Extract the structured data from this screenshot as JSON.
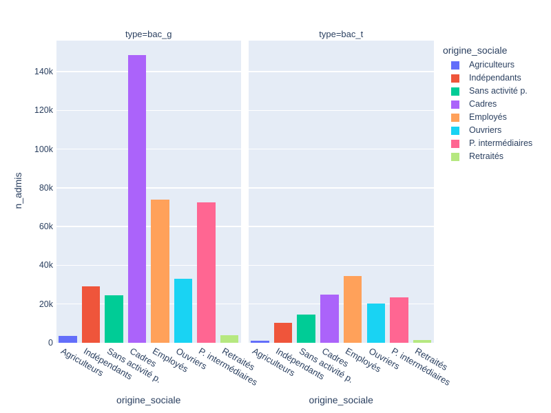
{
  "chart_data": {
    "type": "bar",
    "title": "",
    "xlabel": "origine_sociale",
    "ylabel": "n_admis",
    "ylim": [
      0,
      156000
    ],
    "grid": true,
    "plot_bg": "#e5ecf6",
    "grid_color": "#ffffff",
    "font_color": "#2a3f5f",
    "yticks": [
      {
        "value": 0,
        "label": "0"
      },
      {
        "value": 20000,
        "label": "20k"
      },
      {
        "value": 40000,
        "label": "40k"
      },
      {
        "value": 60000,
        "label": "60k"
      },
      {
        "value": 80000,
        "label": "80k"
      },
      {
        "value": 100000,
        "label": "100k"
      },
      {
        "value": 120000,
        "label": "120k"
      },
      {
        "value": 140000,
        "label": "140k"
      }
    ],
    "categories": [
      "Agriculteurs",
      "Indépendants",
      "Sans activité p.",
      "Cadres",
      "Employés",
      "Ouvriers",
      "P. intermédiaires",
      "Retraités"
    ],
    "colors": [
      "#636efa",
      "#ef553b",
      "#00cc96",
      "#ab63fa",
      "#ffa15a",
      "#19d3f3",
      "#ff6692",
      "#b6e880"
    ],
    "series": [
      {
        "name": "bac_g",
        "facet_title": "type=bac_g",
        "values": [
          3700,
          29000,
          24600,
          148500,
          74000,
          33200,
          72500,
          3900
        ]
      },
      {
        "name": "bac_t",
        "facet_title": "type=bac_t",
        "values": [
          1100,
          10400,
          14400,
          25000,
          34600,
          20300,
          23300,
          1300
        ]
      }
    ],
    "legend": {
      "title": "origine_sociale",
      "items": [
        {
          "label": "Agriculteurs",
          "color": "#636efa"
        },
        {
          "label": "Indépendants",
          "color": "#ef553b"
        },
        {
          "label": "Sans activité p.",
          "color": "#00cc96"
        },
        {
          "label": "Cadres",
          "color": "#ab63fa"
        },
        {
          "label": "Employés",
          "color": "#ffa15a"
        },
        {
          "label": "Ouvriers",
          "color": "#19d3f3"
        },
        {
          "label": "P. intermédiaires",
          "color": "#ff6692"
        },
        {
          "label": "Retraités",
          "color": "#b6e880"
        }
      ]
    }
  }
}
